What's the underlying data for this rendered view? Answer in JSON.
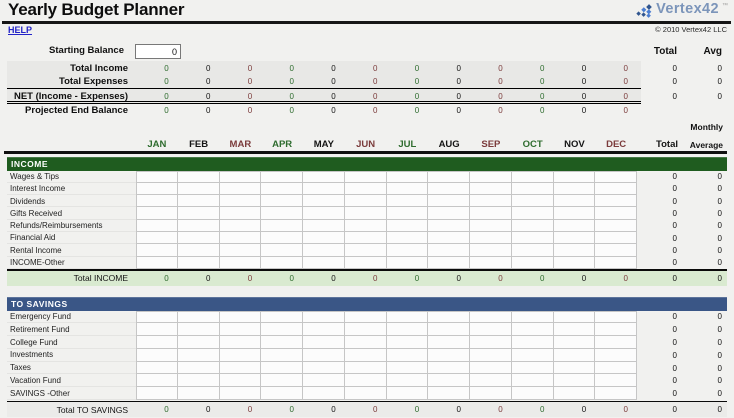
{
  "page": {
    "title": "Yearly Budget Planner",
    "help": "HELP"
  },
  "brand": {
    "name": "Vertex42",
    "tm": "™",
    "copyright": "© 2010 Vertex42 LLC",
    "logo_icon": "vertex42-diamond-cluster-icon"
  },
  "colors": {
    "page_bg": "#F1F1EF",
    "band_bg": "#E8E8E6",
    "cell_bg": "#FCFCFC",
    "grid_line": "#C6C6C6",
    "month_green": "#2E6C2E",
    "month_black": "#141414",
    "month_maroon": "#7B3B3B",
    "income_header_bg": "#1F5C1F",
    "savings_header_bg": "#3A5686",
    "income_total_bg": "#D9EAD0",
    "savings_total_bg": "#EBEBE9",
    "brand_blue": "#7C95BA",
    "help_blue": "#2323C8"
  },
  "summary": {
    "starting_balance": {
      "label": "Starting Balance",
      "value": "0"
    },
    "column_headers": {
      "total": "Total",
      "avg": "Avg"
    },
    "rows": [
      {
        "label": "Total Income",
        "values": [
          "0",
          "0",
          "0",
          "0",
          "0",
          "0",
          "0",
          "0",
          "0",
          "0",
          "0",
          "0"
        ],
        "total": "0",
        "avg": "0"
      },
      {
        "label": "Total Expenses",
        "values": [
          "0",
          "0",
          "0",
          "0",
          "0",
          "0",
          "0",
          "0",
          "0",
          "0",
          "0",
          "0"
        ],
        "total": "0",
        "avg": "0"
      },
      {
        "label": "NET (Income - Expenses)",
        "values": [
          "0",
          "0",
          "0",
          "0",
          "0",
          "0",
          "0",
          "0",
          "0",
          "0",
          "0",
          "0"
        ],
        "total": "0",
        "avg": "0"
      },
      {
        "label": "Projected End Balance",
        "values": [
          "0",
          "0",
          "0",
          "0",
          "0",
          "0",
          "0",
          "0",
          "0",
          "0",
          "0",
          "0"
        ],
        "total": "",
        "avg": ""
      }
    ]
  },
  "calendar": {
    "months": [
      "JAN",
      "FEB",
      "MAR",
      "APR",
      "MAY",
      "JUN",
      "JUL",
      "AUG",
      "SEP",
      "OCT",
      "NOV",
      "DEC"
    ],
    "month_color_cycle": [
      "green",
      "black",
      "maroon"
    ],
    "total_header": "Total",
    "monthly_average_header": [
      "Monthly",
      "Average"
    ]
  },
  "sections": [
    {
      "id": "income",
      "title": "INCOME",
      "rows": [
        {
          "label": "Wages & Tips",
          "total": "0",
          "avg": "0"
        },
        {
          "label": "Interest Income",
          "total": "0",
          "avg": "0"
        },
        {
          "label": "Dividends",
          "total": "0",
          "avg": "0"
        },
        {
          "label": "Gifts Received",
          "total": "0",
          "avg": "0"
        },
        {
          "label": "Refunds/Reimbursements",
          "total": "0",
          "avg": "0"
        },
        {
          "label": "Financial Aid",
          "total": "0",
          "avg": "0"
        },
        {
          "label": "Rental Income",
          "total": "0",
          "avg": "0"
        },
        {
          "label": "INCOME-Other",
          "total": "0",
          "avg": "0"
        }
      ],
      "total_row": {
        "label": "Total INCOME",
        "values": [
          "0",
          "0",
          "0",
          "0",
          "0",
          "0",
          "0",
          "0",
          "0",
          "0",
          "0",
          "0"
        ],
        "total": "0",
        "avg": "0"
      }
    },
    {
      "id": "savings",
      "title": "TO SAVINGS",
      "rows": [
        {
          "label": "Emergency Fund",
          "total": "0",
          "avg": "0"
        },
        {
          "label": "Retirement Fund",
          "total": "0",
          "avg": "0"
        },
        {
          "label": "College Fund",
          "total": "0",
          "avg": "0"
        },
        {
          "label": "Investments",
          "total": "0",
          "avg": "0"
        },
        {
          "label": "Taxes",
          "total": "0",
          "avg": "0"
        },
        {
          "label": "Vacation Fund",
          "total": "0",
          "avg": "0"
        },
        {
          "label": "SAVINGS -Other",
          "total": "0",
          "avg": "0"
        }
      ],
      "total_row": {
        "label": "Total TO SAVINGS",
        "values": [
          "0",
          "0",
          "0",
          "0",
          "0",
          "0",
          "0",
          "0",
          "0",
          "0",
          "0",
          "0"
        ],
        "total": "0",
        "avg": "0"
      }
    }
  ]
}
